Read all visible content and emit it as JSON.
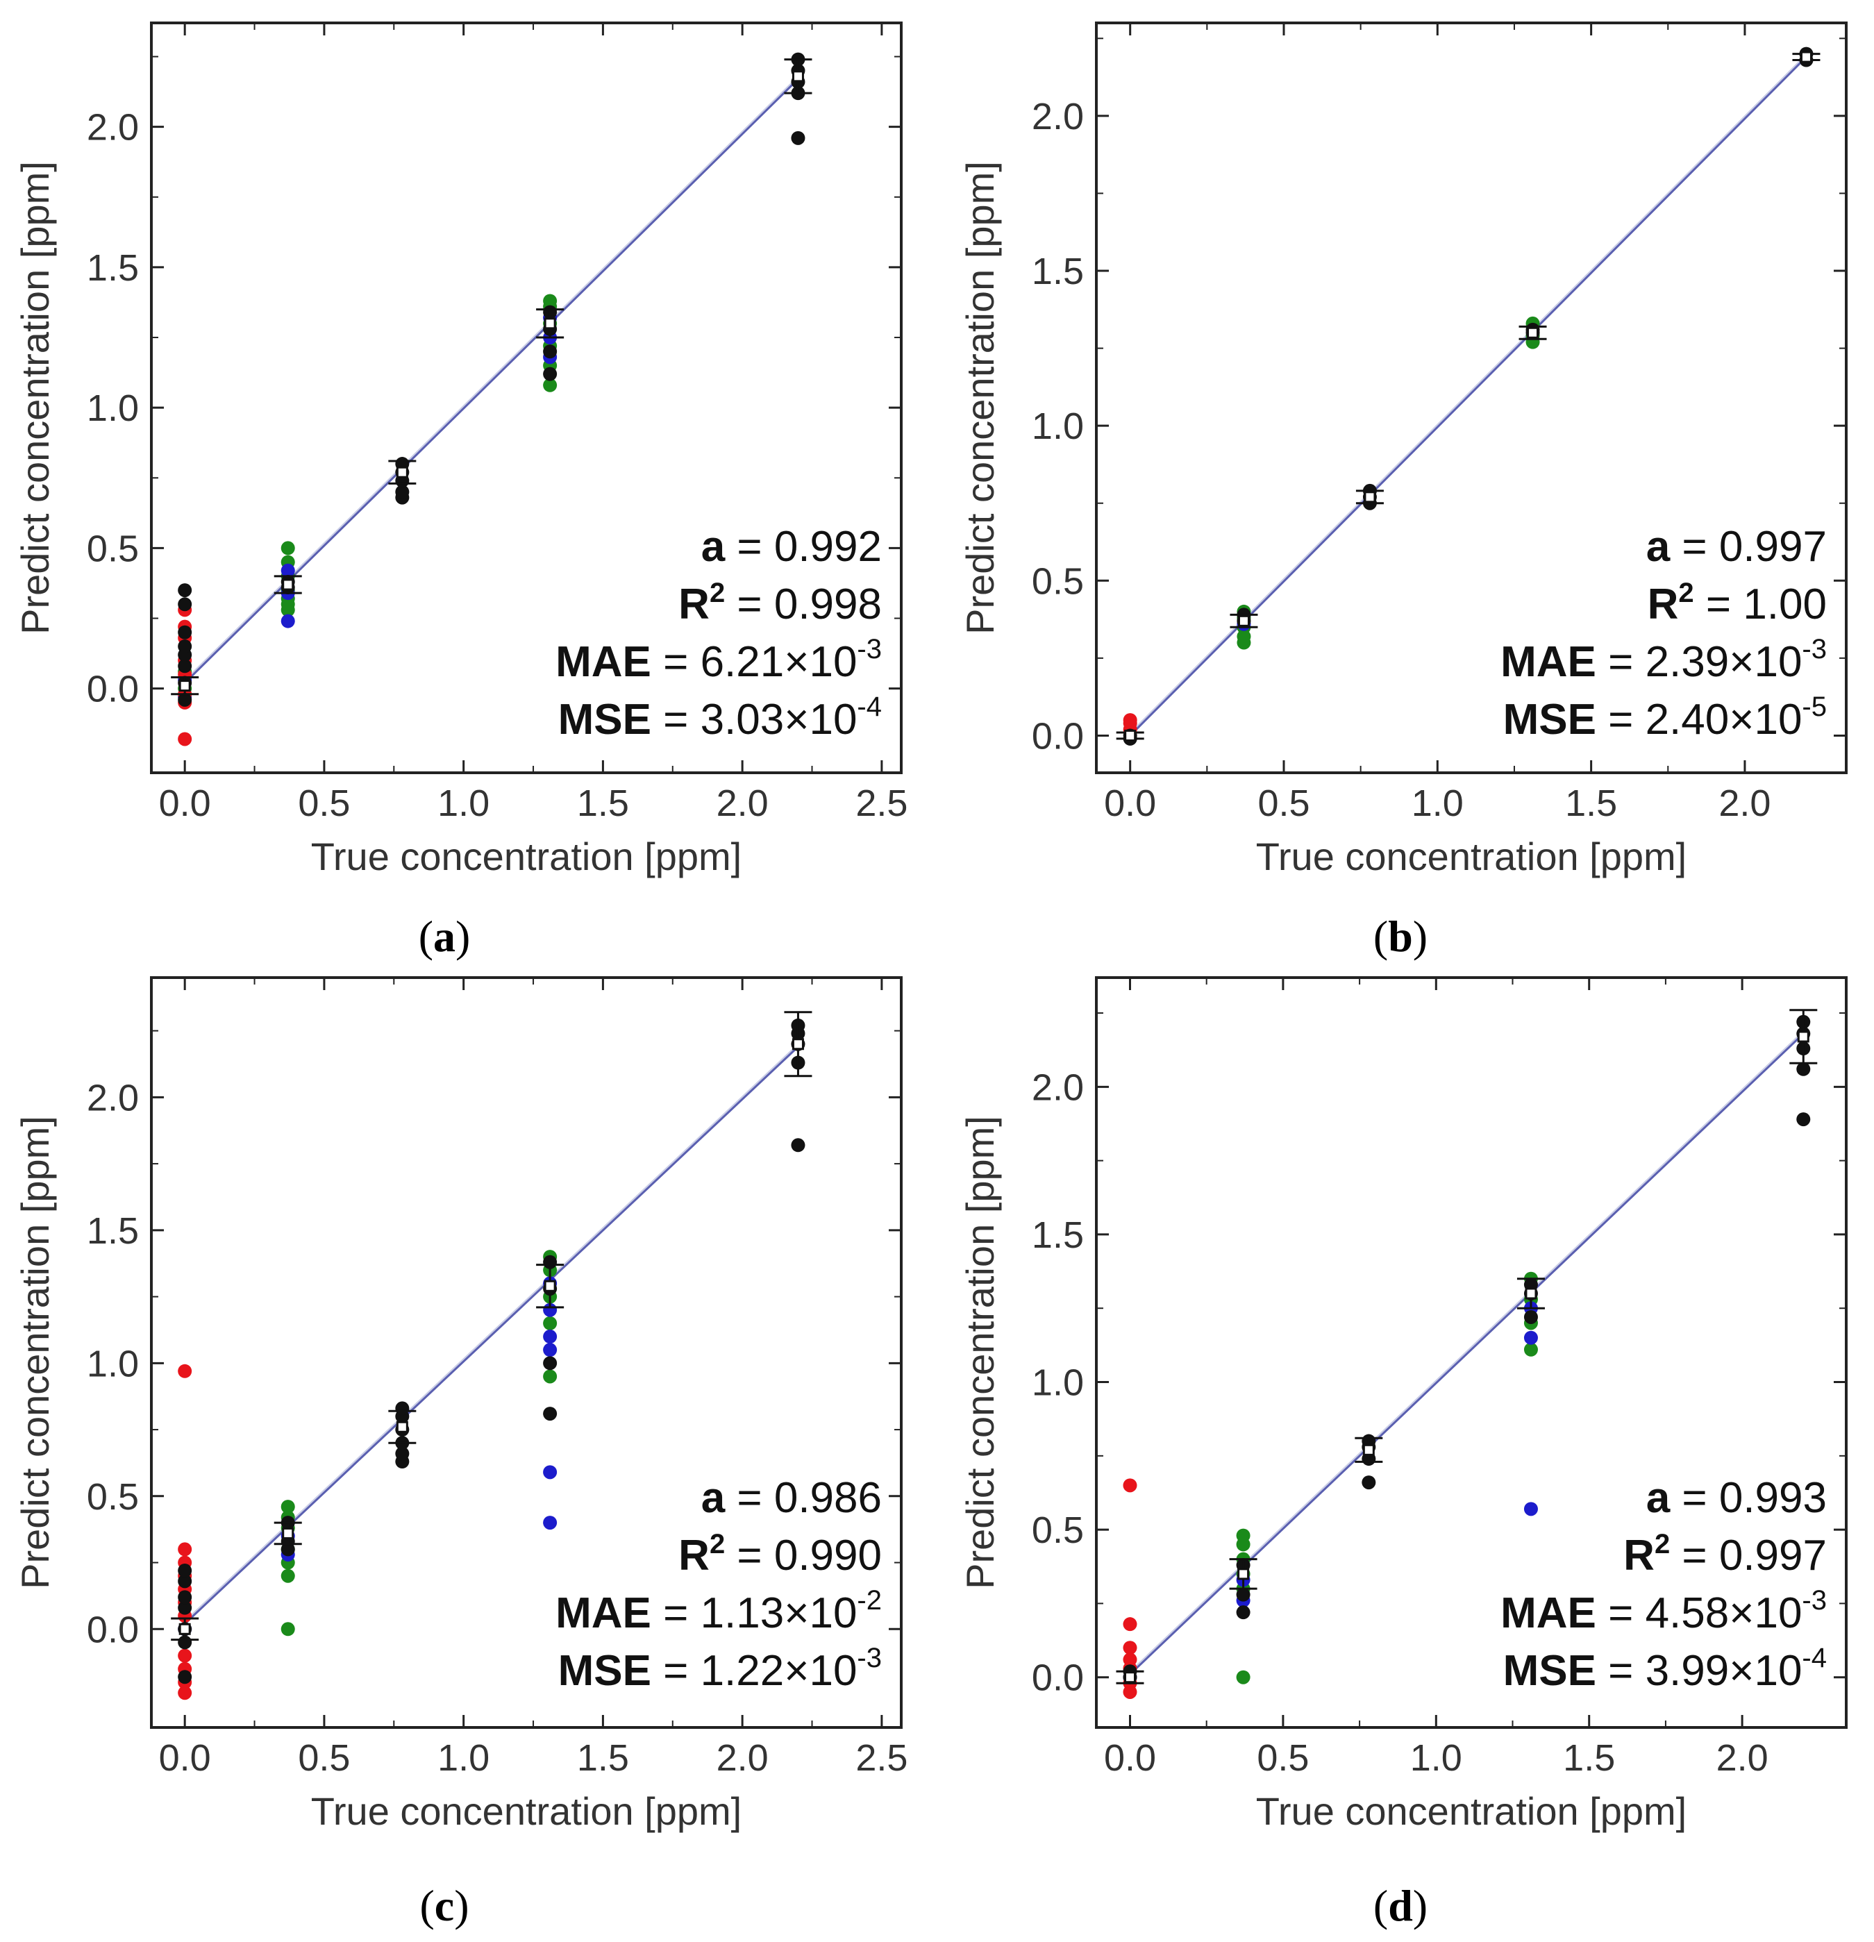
{
  "chart_data": [
    {
      "panel": "a",
      "caption": {
        "open": "(",
        "letter": "a",
        "close": ")"
      },
      "type": "scatter",
      "xlabel": "True concentration [ppm]",
      "ylabel": "Predict concentration [ppm]",
      "xlim": [
        -0.12,
        2.57
      ],
      "ylim": [
        -0.3,
        2.37
      ],
      "xticks": [
        "0.0",
        "0.5",
        "1.0",
        "1.5",
        "2.0",
        "2.5"
      ],
      "yticks": [
        "0.0",
        "0.5",
        "1.0",
        "1.5",
        "2.0"
      ],
      "fit_line": {
        "x": [
          0.0,
          2.2
        ],
        "y": [
          0.02,
          2.17
        ]
      },
      "stats": [
        {
          "label": "a",
          "sup": "",
          "eq": " =  ",
          "val": "0.992",
          "exp": ""
        },
        {
          "label": "R",
          "sup": "2",
          "eq": " = ",
          "val": "0.998",
          "exp": ""
        },
        {
          "label": "MAE",
          "sup": "",
          "eq": " = ",
          "val": "6.21×10",
          "exp": "-3"
        },
        {
          "label": "MSE",
          "sup": "",
          "eq": " = ",
          "val": "3.03×10",
          "exp": "-4"
        }
      ],
      "groups": [
        {
          "x": 0.0,
          "red": [
            -0.18,
            -0.05,
            -0.02,
            0.05,
            0.1,
            0.18,
            0.22,
            0.28
          ],
          "green": [
            0.0,
            0.06
          ],
          "blue": [
            0.03,
            -0.03
          ],
          "black": [
            -0.04,
            0.02,
            0.08,
            0.12,
            0.15,
            0.2,
            0.3,
            0.35
          ],
          "mean": 0.01,
          "err": 0.03
        },
        {
          "x": 0.37,
          "red": [],
          "green": [
            0.28,
            0.3,
            0.32,
            0.35,
            0.4,
            0.45,
            0.5
          ],
          "blue": [
            0.24,
            0.34,
            0.42
          ],
          "black": [
            0.36,
            0.38
          ],
          "mean": 0.37,
          "err": 0.03
        },
        {
          "x": 0.78,
          "red": [],
          "green": [],
          "blue": [],
          "black": [
            0.68,
            0.7,
            0.74,
            0.77,
            0.8
          ],
          "mean": 0.77,
          "err": 0.04
        },
        {
          "x": 1.31,
          "red": [],
          "green": [
            1.08,
            1.15,
            1.22,
            1.3,
            1.36,
            1.38
          ],
          "blue": [
            1.18,
            1.25,
            1.32
          ],
          "black": [
            1.12,
            1.2,
            1.28,
            1.34
          ],
          "mean": 1.3,
          "err": 0.05
        },
        {
          "x": 2.2,
          "red": [],
          "green": [],
          "blue": [],
          "black": [
            1.96,
            2.12,
            2.16,
            2.2,
            2.24
          ],
          "mean": 2.18,
          "err": 0.06
        }
      ]
    },
    {
      "panel": "b",
      "caption": {
        "open": "(",
        "letter": "b",
        "close": ")"
      },
      "type": "scatter",
      "xlabel": "True concentration [ppm]",
      "ylabel": "Predict concentration [ppm]",
      "xlim": [
        -0.11,
        2.33
      ],
      "ylim": [
        -0.12,
        2.3
      ],
      "xticks": [
        "0.0",
        "0.5",
        "1.0",
        "1.5",
        "2.0"
      ],
      "yticks": [
        "0.0",
        "0.5",
        "1.0",
        "1.5",
        "2.0"
      ],
      "fit_line": {
        "x": [
          0.0,
          2.2
        ],
        "y": [
          0.0,
          2.19
        ]
      },
      "stats": [
        {
          "label": "a",
          "sup": "",
          "eq": " = ",
          "val": "0.997",
          "exp": ""
        },
        {
          "label": "R",
          "sup": "2",
          "eq": " = ",
          "val": "1.00",
          "exp": ""
        },
        {
          "label": "MAE",
          "sup": "",
          "eq": " = ",
          "val": "2.39×10",
          "exp": "-3"
        },
        {
          "label": "MSE",
          "sup": "",
          "eq": " = ",
          "val": "2.40×10",
          "exp": "-5"
        }
      ],
      "groups": [
        {
          "x": 0.0,
          "red": [
            0.02,
            0.04,
            0.05
          ],
          "green": [],
          "blue": [],
          "black": [
            0.0,
            -0.01
          ],
          "mean": 0.0,
          "err": 0.01
        },
        {
          "x": 0.37,
          "red": [],
          "green": [
            0.3,
            0.32,
            0.35,
            0.38,
            0.4
          ],
          "blue": [
            0.36
          ],
          "black": [
            0.37,
            0.39
          ],
          "mean": 0.37,
          "err": 0.02
        },
        {
          "x": 0.78,
          "red": [],
          "green": [],
          "blue": [],
          "black": [
            0.75,
            0.77,
            0.79
          ],
          "mean": 0.77,
          "err": 0.02
        },
        {
          "x": 1.31,
          "red": [],
          "green": [
            1.27,
            1.29,
            1.33
          ],
          "blue": [],
          "black": [
            1.3,
            1.31
          ],
          "mean": 1.3,
          "err": 0.02
        },
        {
          "x": 2.2,
          "red": [],
          "green": [],
          "blue": [],
          "black": [
            2.18,
            2.2
          ],
          "mean": 2.19,
          "err": 0.01
        }
      ]
    },
    {
      "panel": "c",
      "caption": {
        "open": "(",
        "letter": "c",
        "close": ")"
      },
      "type": "scatter",
      "xlabel": "True concentration [ppm]",
      "ylabel": "Predict concentration [ppm]",
      "xlim": [
        -0.12,
        2.57
      ],
      "ylim": [
        -0.37,
        2.45
      ],
      "xticks": [
        "0.0",
        "0.5",
        "1.0",
        "1.5",
        "2.0",
        "2.5"
      ],
      "yticks": [
        "0.0",
        "0.5",
        "1.0",
        "1.5",
        "2.0"
      ],
      "fit_line": {
        "x": [
          0.0,
          2.2
        ],
        "y": [
          0.02,
          2.19
        ]
      },
      "stats": [
        {
          "label": "a",
          "sup": "",
          "eq": " = ",
          "val": "0.986",
          "exp": ""
        },
        {
          "label": "R",
          "sup": "2",
          "eq": " = ",
          "val": "0.990",
          "exp": ""
        },
        {
          "label": "MAE",
          "sup": "",
          "eq": " = ",
          "val": "1.13×10",
          "exp": "-2"
        },
        {
          "label": "MSE",
          "sup": "",
          "eq": " = ",
          "val": "1.22×10",
          "exp": "-3"
        }
      ],
      "groups": [
        {
          "x": 0.0,
          "red": [
            -0.24,
            -0.2,
            -0.15,
            -0.1,
            0.05,
            0.1,
            0.15,
            0.2,
            0.25,
            0.3,
            0.97
          ],
          "green": [],
          "blue": [
            0.0
          ],
          "black": [
            -0.18,
            -0.05,
            0.0,
            0.08,
            0.12,
            0.18,
            0.22
          ],
          "mean": 0.0,
          "err": 0.04
        },
        {
          "x": 0.37,
          "red": [],
          "green": [
            0.0,
            0.2,
            0.25,
            0.3,
            0.38,
            0.42,
            0.46
          ],
          "blue": [
            0.28,
            0.35
          ],
          "black": [
            0.3,
            0.33,
            0.4
          ],
          "mean": 0.36,
          "err": 0.04
        },
        {
          "x": 0.78,
          "red": [],
          "green": [],
          "blue": [],
          "black": [
            0.63,
            0.66,
            0.7,
            0.75,
            0.8,
            0.83
          ],
          "mean": 0.76,
          "err": 0.06
        },
        {
          "x": 1.31,
          "red": [],
          "green": [
            0.95,
            1.15,
            1.25,
            1.35,
            1.4
          ],
          "blue": [
            0.4,
            0.59,
            1.05,
            1.1,
            1.2,
            1.3
          ],
          "black": [
            0.81,
            1.0,
            1.28,
            1.38
          ],
          "mean": 1.29,
          "err": 0.08
        },
        {
          "x": 2.2,
          "red": [],
          "green": [],
          "blue": [],
          "black": [
            1.82,
            2.13,
            2.2,
            2.24,
            2.27
          ],
          "mean": 2.2,
          "err": 0.12
        }
      ]
    },
    {
      "panel": "d",
      "caption": {
        "open": "(",
        "letter": "d",
        "close": ")"
      },
      "type": "scatter",
      "xlabel": "True concentration [ppm]",
      "ylabel": "Predict concentration [ppm]",
      "xlim": [
        -0.11,
        2.34
      ],
      "ylim": [
        -0.17,
        2.37
      ],
      "xticks": [
        "0.0",
        "0.5",
        "1.0",
        "1.5",
        "2.0"
      ],
      "yticks": [
        "0.0",
        "0.5",
        "1.0",
        "1.5",
        "2.0"
      ],
      "fit_line": {
        "x": [
          0.0,
          2.2
        ],
        "y": [
          0.01,
          2.18
        ]
      },
      "stats": [
        {
          "label": "a",
          "sup": "",
          "eq": " =  ",
          "val": "0.993",
          "exp": ""
        },
        {
          "label": "R",
          "sup": "2",
          "eq": " = ",
          "val": "0.997",
          "exp": ""
        },
        {
          "label": "MAE",
          "sup": "",
          "eq": " = ",
          "val": "4.58×10",
          "exp": "-3"
        },
        {
          "label": "MSE",
          "sup": "",
          "eq": " = ",
          "val": "3.99×10",
          "exp": "-4"
        }
      ],
      "groups": [
        {
          "x": 0.0,
          "red": [
            -0.05,
            -0.02,
            0.03,
            0.06,
            0.1,
            0.18,
            0.65
          ],
          "green": [],
          "blue": [
            0.0
          ],
          "black": [
            0.0,
            0.02
          ],
          "mean": 0.0,
          "err": 0.02
        },
        {
          "x": 0.37,
          "red": [],
          "green": [
            0.0,
            0.3,
            0.35,
            0.4,
            0.45,
            0.48
          ],
          "blue": [
            0.26,
            0.33
          ],
          "black": [
            0.22,
            0.28,
            0.38
          ],
          "mean": 0.35,
          "err": 0.05
        },
        {
          "x": 0.78,
          "red": [],
          "green": [],
          "blue": [],
          "black": [
            0.66,
            0.74,
            0.78,
            0.8
          ],
          "mean": 0.77,
          "err": 0.04
        },
        {
          "x": 1.31,
          "red": [],
          "green": [
            1.11,
            1.2,
            1.28,
            1.35
          ],
          "blue": [
            0.57,
            1.15,
            1.25
          ],
          "black": [
            1.22,
            1.3,
            1.33
          ],
          "mean": 1.3,
          "err": 0.05
        },
        {
          "x": 2.2,
          "red": [],
          "green": [],
          "blue": [],
          "black": [
            1.89,
            2.06,
            2.13,
            2.18,
            2.22
          ],
          "mean": 2.17,
          "err": 0.09
        }
      ]
    }
  ],
  "colors": {
    "red": "#e8141b",
    "green": "#1a8a1a",
    "blue": "#1c1ccc",
    "black": "#111111",
    "fit": "#5a5fb0"
  }
}
